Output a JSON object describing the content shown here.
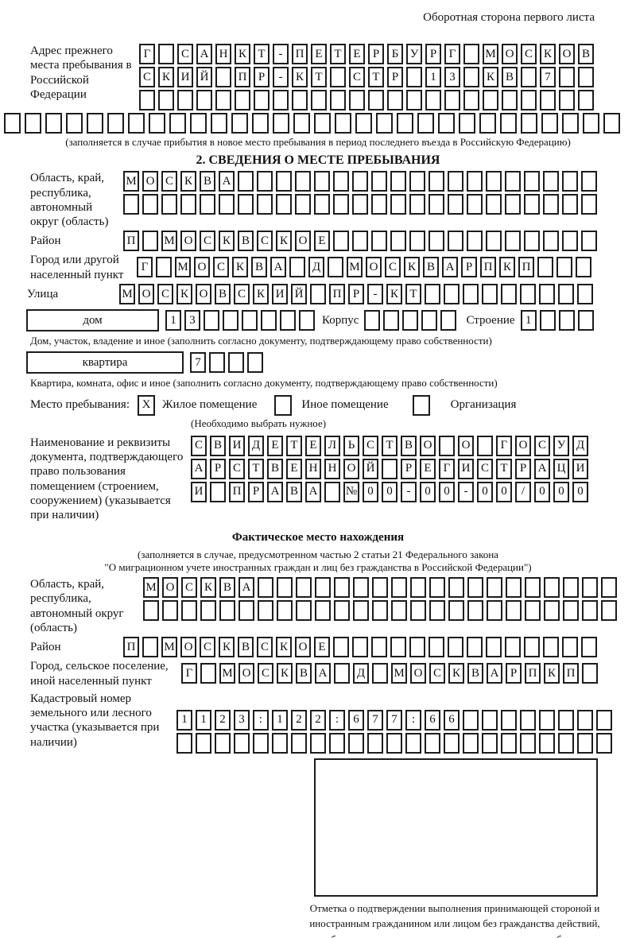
{
  "ink": "#1c1c1c",
  "header_note": "Оборотная сторона первого листа",
  "prev_address": {
    "label": "Адрес прежнего места пребывания в Российской Федерации",
    "rows": {
      "r1": [
        "Г",
        "",
        "С",
        "А",
        "Н",
        "К",
        "Т",
        "-",
        "П",
        "Е",
        "Т",
        "Е",
        "Р",
        "Б",
        "У",
        "Р",
        "Г",
        "",
        "М",
        "О",
        "С",
        "К",
        "О",
        "В"
      ],
      "r2": [
        "С",
        "К",
        "И",
        "Й",
        "",
        "П",
        "Р",
        "-",
        "К",
        "Т",
        "",
        "С",
        "Т",
        "Р",
        "",
        "1",
        "3",
        "",
        "К",
        "В",
        "",
        "7",
        "",
        ""
      ],
      "r3": [
        "",
        "",
        "",
        "",
        "",
        "",
        "",
        "",
        "",
        "",
        "",
        "",
        "",
        "",
        "",
        "",
        "",
        "",
        "",
        "",
        "",
        "",
        "",
        ""
      ],
      "overflow": [
        "",
        "",
        "",
        "",
        "",
        "",
        "",
        "",
        "",
        "",
        "",
        "",
        "",
        "",
        "",
        "",
        "",
        "",
        "",
        "",
        "",
        "",
        "",
        "",
        "",
        "",
        "",
        "",
        "",
        ""
      ]
    },
    "caption": "(заполняется в случае прибытия в новое место пребывания в период последнего въезда в Российскую Федерацию)"
  },
  "section2": {
    "title": "2. СВЕДЕНИЯ О МЕСТЕ ПРЕБЫВАНИЯ",
    "region": {
      "label": "Область, край, республика, автономный округ (область)",
      "rows": {
        "r1": [
          "М",
          "О",
          "С",
          "К",
          "В",
          "А",
          "",
          "",
          "",
          "",
          "",
          "",
          "",
          "",
          "",
          "",
          "",
          "",
          "",
          "",
          "",
          "",
          "",
          "",
          ""
        ],
        "r2": [
          "",
          "",
          "",
          "",
          "",
          "",
          "",
          "",
          "",
          "",
          "",
          "",
          "",
          "",
          "",
          "",
          "",
          "",
          "",
          "",
          "",
          "",
          "",
          "",
          ""
        ]
      }
    },
    "district": {
      "label": "Район",
      "cells": [
        "П",
        "",
        "М",
        "О",
        "С",
        "К",
        "В",
        "С",
        "К",
        "О",
        "Е",
        "",
        "",
        "",
        "",
        "",
        "",
        "",
        "",
        "",
        "",
        "",
        "",
        "",
        ""
      ]
    },
    "city": {
      "label": "Город или другой населенный пункт",
      "cells": [
        "Г",
        "",
        "М",
        "О",
        "С",
        "К",
        "В",
        "А",
        "",
        "Д",
        "",
        "М",
        "О",
        "С",
        "К",
        "В",
        "А",
        "Р",
        "П",
        "К",
        "П",
        "",
        "",
        ""
      ]
    },
    "street": {
      "label": "Улица",
      "cells": [
        "М",
        "О",
        "С",
        "К",
        "О",
        "В",
        "С",
        "К",
        "И",
        "Й",
        "",
        "П",
        "Р",
        "-",
        "К",
        "Т",
        "",
        "",
        "",
        "",
        "",
        "",
        "",
        "",
        ""
      ]
    },
    "house": {
      "box_label": "дом",
      "cells": [
        "1",
        "3",
        "",
        "",
        "",
        "",
        "",
        ""
      ],
      "korpus_label": "Корпус",
      "korpus_cells": [
        "",
        "",
        "",
        "",
        ""
      ],
      "stroenie_label": "Строение",
      "stroenie_cells": [
        "1",
        "",
        "",
        ""
      ],
      "caption": "Дом, участок, владение и иное (заполнить согласно документу, подтверждающему право собственности)"
    },
    "apartment": {
      "box_label": "квартира",
      "cells": [
        "7",
        "",
        "",
        ""
      ],
      "caption": "Квартира, комната, офис и иное (заполнить согласно документу, подтверждающему право собственности)"
    },
    "stay_type": {
      "label": "Место пребывания:",
      "options": [
        {
          "mark": "X",
          "label": "Жилое помещение"
        },
        {
          "mark": "",
          "label": "Иное помещение"
        },
        {
          "mark": "",
          "label": "Организация"
        }
      ],
      "caption": "(Необходимо выбрать нужное)"
    },
    "doc": {
      "label": "Наименование и реквизиты документа, подтверждающего право пользования помещением (строением, сооружением) (указывается при наличии)",
      "rows": {
        "r1": [
          "С",
          "В",
          "И",
          "Д",
          "Е",
          "Т",
          "Е",
          "Л",
          "Ь",
          "С",
          "Т",
          "В",
          "О",
          "",
          "О",
          "",
          "Г",
          "О",
          "С",
          "У",
          "Д"
        ],
        "r2": [
          "А",
          "Р",
          "С",
          "Т",
          "В",
          "Е",
          "Н",
          "Н",
          "О",
          "Й",
          "",
          "Р",
          "Е",
          "Г",
          "И",
          "С",
          "Т",
          "Р",
          "А",
          "Ц",
          "И"
        ],
        "r3": [
          "И",
          "",
          "П",
          "Р",
          "А",
          "В",
          "А",
          "",
          "№",
          "0",
          "0",
          "-",
          "0",
          "0",
          "-",
          "0",
          "0",
          "/",
          "0",
          "0",
          "0"
        ]
      }
    }
  },
  "actual_location": {
    "title": "Фактическое место нахождения",
    "caption_line1": "(заполняется в случае, предусмотренном частью 2 статьи 21 Федерального закона",
    "caption_line2": "\"О миграционном учете иностранных граждан и лиц без гражданства в Российской Федерации\")",
    "region": {
      "label": "Область, край, республика, автономный округ (область)",
      "rows": {
        "r1": [
          "М",
          "О",
          "С",
          "К",
          "В",
          "А",
          "",
          "",
          "",
          "",
          "",
          "",
          "",
          "",
          "",
          "",
          "",
          "",
          "",
          "",
          "",
          "",
          "",
          "",
          ""
        ],
        "r2": [
          "",
          "",
          "",
          "",
          "",
          "",
          "",
          "",
          "",
          "",
          "",
          "",
          "",
          "",
          "",
          "",
          "",
          "",
          "",
          "",
          "",
          "",
          "",
          "",
          ""
        ]
      }
    },
    "district": {
      "label": "Район",
      "cells": [
        "П",
        "",
        "М",
        "О",
        "С",
        "К",
        "В",
        "С",
        "К",
        "О",
        "Е",
        "",
        "",
        "",
        "",
        "",
        "",
        "",
        "",
        "",
        "",
        "",
        "",
        "",
        ""
      ]
    },
    "city": {
      "label": "Город, сельское поселение, иной населенный пункт",
      "cells": [
        "Г",
        "",
        "М",
        "О",
        "С",
        "К",
        "В",
        "А",
        "",
        "Д",
        "",
        "М",
        "О",
        "С",
        "К",
        "В",
        "А",
        "Р",
        "П",
        "К",
        "П",
        ""
      ]
    },
    "cadastre": {
      "label": "Кадастровый номер земельного или лесного участка (указывается при наличии)",
      "rows": {
        "r1": [
          "1",
          "1",
          "2",
          "3",
          ":",
          "1",
          "2",
          "2",
          ":",
          "6",
          "7",
          "7",
          ":",
          "6",
          "6",
          "",
          "",
          "",
          "",
          "",
          "",
          "",
          ""
        ],
        "r2": [
          "",
          "",
          "",
          "",
          "",
          "",
          "",
          "",
          "",
          "",
          "",
          "",
          "",
          "",
          "",
          "",
          "",
          "",
          "",
          "",
          "",
          "",
          ""
        ]
      }
    }
  },
  "stamp": {
    "caption": "Отметка о подтверждении выполнения принимающей стороной и иностранным гражданином или лицом без гражданства действий, необходимых для его постановки на учет по месту пребывания"
  }
}
